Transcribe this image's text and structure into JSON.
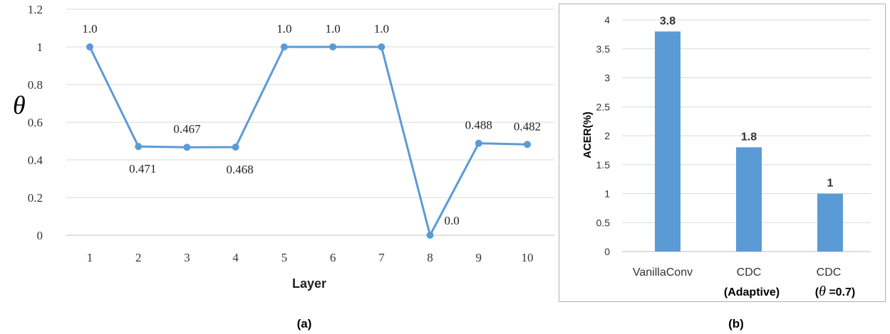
{
  "figure": {
    "caption_a": "(a)",
    "caption_b": "(b)"
  },
  "chart_data": [
    {
      "type": "line",
      "xlabel": "Layer",
      "ylabel": "θ",
      "x": [
        1,
        2,
        3,
        4,
        5,
        6,
        7,
        8,
        9,
        10
      ],
      "y": [
        1.0,
        0.471,
        0.467,
        0.468,
        1.0,
        1.0,
        1.0,
        0.0,
        0.488,
        0.482
      ],
      "data_labels": [
        "1.0",
        "0.471",
        "0.467",
        "0.468",
        "1.0",
        "1.0",
        "1.0",
        "0.0",
        "0.488",
        "0.482"
      ],
      "ylim": [
        0,
        1.2
      ],
      "yticks": [
        "0",
        "0.2",
        "0.4",
        "0.6",
        "0.8",
        "1",
        "1.2"
      ],
      "grid": true,
      "color": "#5b9bd5"
    },
    {
      "type": "bar",
      "categories": [
        {
          "line1": "VanillaConv",
          "line2": ""
        },
        {
          "line1": "CDC",
          "line2": "(Adaptive)"
        },
        {
          "line1": "CDC",
          "line2_prefix": "(",
          "line2_symbol": "θ",
          "line2_suffix": " =0.7)"
        }
      ],
      "values": [
        3.8,
        1.8,
        1
      ],
      "data_labels": [
        "3.8",
        "1.8",
        "1"
      ],
      "ylabel": "ACER(%)",
      "ylim": [
        0,
        4
      ],
      "yticks": [
        "0",
        "0.5",
        "1",
        "1.5",
        "2",
        "2.5",
        "3",
        "3.5",
        "4"
      ],
      "grid": true,
      "color": "#5b9bd5"
    }
  ]
}
